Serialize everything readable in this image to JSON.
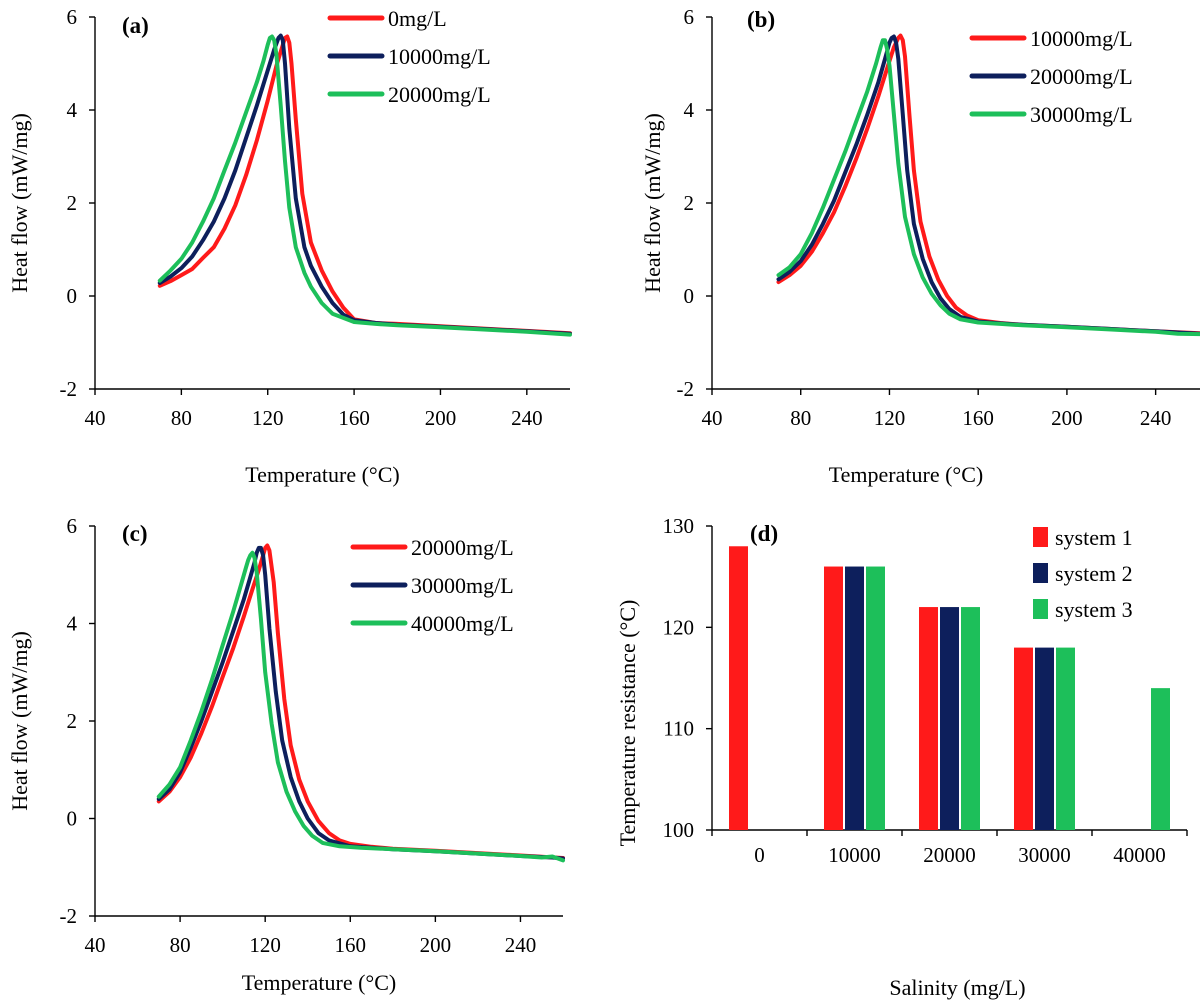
{
  "colors": {
    "red": "#ff1a1a",
    "navy": "#0d1f5c",
    "green": "#1dbf5a"
  },
  "chart_data": [
    {
      "id": "a",
      "panel_label": "(a)",
      "type": "line",
      "xlabel": "Temperature (°C)",
      "ylabel": "Heat flow (mW/mg)",
      "xlim": [
        40,
        260
      ],
      "ylim": [
        -2,
        6
      ],
      "xticks": [
        40,
        80,
        120,
        160,
        200,
        240
      ],
      "yticks": [
        -2,
        0,
        2,
        4,
        6
      ],
      "legend": "top-right",
      "series": [
        {
          "name": "0mg/L",
          "color": "red",
          "x": [
            70,
            75,
            80,
            85,
            90,
            95,
            100,
            105,
            110,
            115,
            120,
            124,
            127,
            128,
            129,
            130,
            131,
            133,
            136,
            140,
            145,
            150,
            155,
            160,
            170,
            180,
            200,
            220,
            240,
            260
          ],
          "y": [
            0.22,
            0.32,
            0.45,
            0.58,
            0.82,
            1.05,
            1.45,
            1.95,
            2.6,
            3.35,
            4.2,
            4.95,
            5.4,
            5.55,
            5.58,
            5.45,
            5.0,
            3.8,
            2.2,
            1.15,
            0.55,
            0.1,
            -0.25,
            -0.5,
            -0.58,
            -0.6,
            -0.65,
            -0.7,
            -0.75,
            -0.8
          ]
        },
        {
          "name": "10000mg/L",
          "color": "navy",
          "x": [
            70,
            75,
            80,
            85,
            90,
            95,
            100,
            105,
            110,
            115,
            120,
            123,
            125,
            126,
            127,
            128,
            130,
            133,
            137,
            140,
            145,
            150,
            155,
            160,
            170,
            180,
            200,
            220,
            240,
            260
          ],
          "y": [
            0.28,
            0.42,
            0.6,
            0.85,
            1.2,
            1.6,
            2.1,
            2.7,
            3.4,
            4.1,
            4.85,
            5.3,
            5.55,
            5.6,
            5.5,
            5.0,
            3.6,
            2.1,
            1.05,
            0.65,
            0.2,
            -0.15,
            -0.4,
            -0.52,
            -0.58,
            -0.62,
            -0.66,
            -0.71,
            -0.76,
            -0.81
          ]
        },
        {
          "name": "20000mg/L",
          "color": "green",
          "x": [
            70,
            75,
            80,
            85,
            90,
            95,
            100,
            105,
            110,
            115,
            118,
            120,
            121,
            122,
            123,
            124,
            126,
            128,
            130,
            133,
            137,
            140,
            145,
            150,
            160,
            170,
            180,
            200,
            220,
            240,
            260
          ],
          "y": [
            0.33,
            0.55,
            0.8,
            1.15,
            1.6,
            2.1,
            2.7,
            3.3,
            3.95,
            4.6,
            5.05,
            5.4,
            5.55,
            5.58,
            5.5,
            5.2,
            4.1,
            2.9,
            1.9,
            1.05,
            0.5,
            0.2,
            -0.15,
            -0.38,
            -0.56,
            -0.6,
            -0.63,
            -0.67,
            -0.72,
            -0.77,
            -0.83
          ]
        }
      ]
    },
    {
      "id": "b",
      "panel_label": "(b)",
      "type": "line",
      "xlabel": "Temperature (°C)",
      "ylabel": "Heat flow (mW/mg)",
      "xlim": [
        40,
        260
      ],
      "ylim": [
        -2,
        6
      ],
      "xticks": [
        40,
        80,
        120,
        160,
        200,
        240
      ],
      "yticks": [
        -2,
        0,
        2,
        4,
        6
      ],
      "legend": "top-right",
      "series": [
        {
          "name": "10000mg/L",
          "color": "red",
          "x": [
            70,
            75,
            80,
            85,
            90,
            95,
            100,
            105,
            110,
            115,
            119,
            122,
            124,
            125,
            126,
            127,
            129,
            131,
            134,
            138,
            142,
            146,
            150,
            155,
            160,
            170,
            180,
            200,
            220,
            240,
            260
          ],
          "y": [
            0.3,
            0.45,
            0.65,
            0.95,
            1.35,
            1.8,
            2.35,
            2.95,
            3.6,
            4.3,
            4.9,
            5.35,
            5.55,
            5.6,
            5.5,
            5.15,
            3.9,
            2.7,
            1.6,
            0.85,
            0.35,
            0.0,
            -0.25,
            -0.42,
            -0.52,
            -0.58,
            -0.62,
            -0.66,
            -0.71,
            -0.76,
            -0.8
          ]
        },
        {
          "name": "20000mg/L",
          "color": "navy",
          "x": [
            70,
            75,
            80,
            85,
            90,
            95,
            100,
            105,
            110,
            115,
            118,
            120,
            121,
            122,
            123,
            124,
            126,
            128,
            131,
            135,
            139,
            143,
            147,
            152,
            160,
            170,
            180,
            200,
            220,
            240,
            260
          ],
          "y": [
            0.36,
            0.52,
            0.75,
            1.1,
            1.55,
            2.05,
            2.65,
            3.25,
            3.9,
            4.6,
            5.1,
            5.45,
            5.55,
            5.58,
            5.45,
            5.1,
            3.9,
            2.7,
            1.55,
            0.8,
            0.3,
            -0.05,
            -0.28,
            -0.45,
            -0.55,
            -0.59,
            -0.62,
            -0.66,
            -0.71,
            -0.76,
            -0.81
          ]
        },
        {
          "name": "30000mg/L",
          "color": "green",
          "x": [
            70,
            75,
            80,
            85,
            90,
            95,
            100,
            105,
            110,
            114,
            116,
            117,
            118,
            119,
            120,
            122,
            124,
            127,
            131,
            135,
            139,
            143,
            147,
            152,
            160,
            170,
            180,
            200,
            220,
            240,
            250,
            260
          ],
          "y": [
            0.45,
            0.62,
            0.9,
            1.35,
            1.9,
            2.5,
            3.1,
            3.75,
            4.4,
            5.0,
            5.35,
            5.5,
            5.5,
            5.3,
            4.95,
            3.9,
            2.85,
            1.7,
            0.9,
            0.4,
            0.05,
            -0.2,
            -0.38,
            -0.5,
            -0.57,
            -0.6,
            -0.63,
            -0.67,
            -0.72,
            -0.77,
            -0.81,
            -0.82
          ]
        }
      ]
    },
    {
      "id": "c",
      "panel_label": "(c)",
      "type": "line",
      "xlabel": "Temperature (°C)",
      "ylabel": "Heat flow (mW/mg)",
      "xlim": [
        40,
        260
      ],
      "ylim": [
        -2,
        6
      ],
      "xticks": [
        40,
        80,
        120,
        160,
        200,
        240
      ],
      "yticks": [
        -2,
        0,
        2,
        4,
        6
      ],
      "legend": "top-right",
      "series": [
        {
          "name": "20000mg/L",
          "color": "red",
          "x": [
            70,
            75,
            80,
            85,
            90,
            95,
            100,
            105,
            110,
            114,
            117,
            119,
            120,
            121,
            122,
            124,
            126,
            129,
            132,
            136,
            140,
            145,
            150,
            155,
            160,
            170,
            180,
            200,
            220,
            240,
            260
          ],
          "y": [
            0.35,
            0.55,
            0.85,
            1.25,
            1.75,
            2.3,
            2.9,
            3.5,
            4.15,
            4.7,
            5.1,
            5.4,
            5.55,
            5.6,
            5.5,
            4.85,
            3.8,
            2.45,
            1.5,
            0.8,
            0.35,
            -0.05,
            -0.3,
            -0.45,
            -0.52,
            -0.58,
            -0.62,
            -0.66,
            -0.71,
            -0.76,
            -0.81
          ]
        },
        {
          "name": "30000mg/L",
          "color": "navy",
          "x": [
            70,
            75,
            80,
            85,
            90,
            95,
            100,
            105,
            110,
            113,
            115,
            116,
            117,
            118,
            119,
            120,
            122,
            125,
            128,
            132,
            136,
            140,
            145,
            150,
            160,
            170,
            180,
            200,
            220,
            240,
            255,
            260
          ],
          "y": [
            0.4,
            0.6,
            0.95,
            1.45,
            2.0,
            2.6,
            3.2,
            3.85,
            4.5,
            4.95,
            5.25,
            5.45,
            5.55,
            5.55,
            5.4,
            5.0,
            3.9,
            2.6,
            1.6,
            0.85,
            0.35,
            0.0,
            -0.3,
            -0.45,
            -0.57,
            -0.6,
            -0.63,
            -0.67,
            -0.72,
            -0.77,
            -0.8,
            -0.82
          ]
        },
        {
          "name": "40000mg/L",
          "color": "green",
          "x": [
            70,
            75,
            80,
            85,
            90,
            95,
            100,
            105,
            109,
            111,
            112,
            113,
            114,
            115,
            116,
            118,
            120,
            123,
            126,
            130,
            134,
            138,
            142,
            147,
            155,
            165,
            180,
            200,
            220,
            240,
            250,
            255,
            260
          ],
          "y": [
            0.45,
            0.7,
            1.05,
            1.6,
            2.2,
            2.85,
            3.55,
            4.25,
            4.85,
            5.15,
            5.3,
            5.4,
            5.45,
            5.35,
            5.05,
            4.1,
            3.0,
            1.95,
            1.15,
            0.55,
            0.15,
            -0.15,
            -0.35,
            -0.5,
            -0.57,
            -0.6,
            -0.63,
            -0.67,
            -0.72,
            -0.77,
            -0.8,
            -0.78,
            -0.86
          ]
        }
      ]
    },
    {
      "id": "d",
      "panel_label": "(d)",
      "type": "bar",
      "xlabel": "Salinity (mg/L)",
      "ylabel": "Temperature resistance (°C)",
      "categories": [
        "0",
        "10000",
        "20000",
        "30000",
        "40000"
      ],
      "ylim": [
        100,
        130
      ],
      "yticks": [
        100,
        110,
        120,
        130
      ],
      "legend": "top-right",
      "series": [
        {
          "name": "system 1",
          "color": "red",
          "values": [
            128,
            126,
            122,
            118,
            null
          ]
        },
        {
          "name": "system 2",
          "color": "navy",
          "values": [
            null,
            126,
            122,
            118,
            null
          ]
        },
        {
          "name": "system 3",
          "color": "green",
          "values": [
            null,
            126,
            122,
            118,
            114
          ]
        }
      ]
    }
  ]
}
